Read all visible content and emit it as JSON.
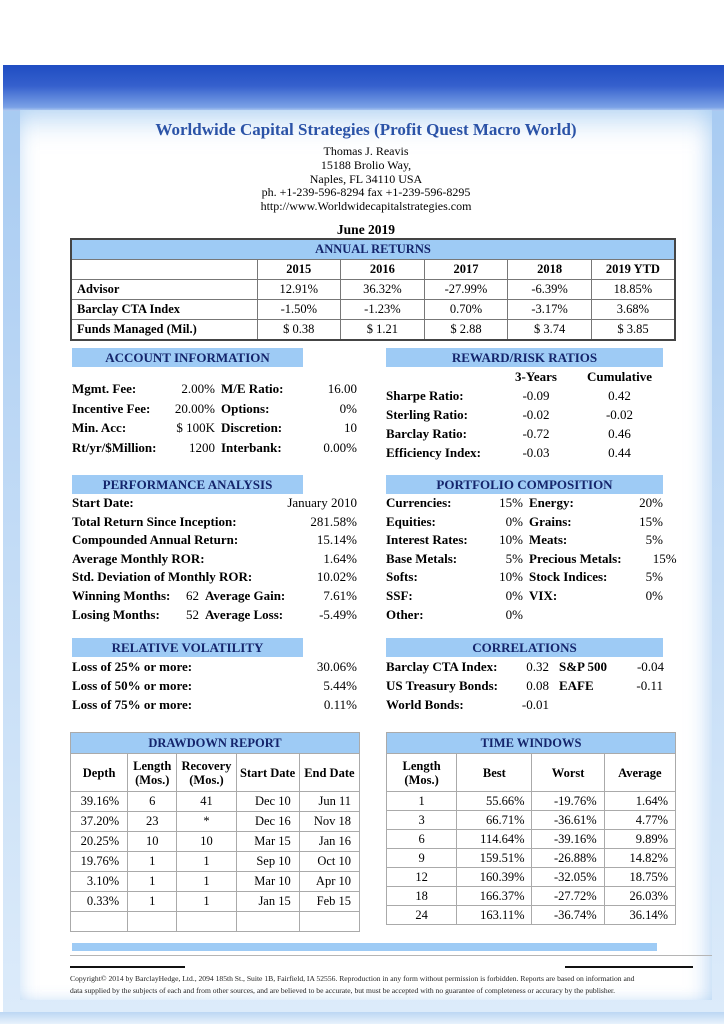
{
  "header": {
    "title": "Worldwide Capital Strategies (Profit Quest Macro World)",
    "contact": [
      "Thomas J. Reavis",
      "15188 Brolio Way,",
      "Naples, FL 34110 USA",
      "ph. +1-239-596-8294  fax +1-239-596-8295",
      "http://www.Worldwidecapitalstrategies.com"
    ],
    "report_date": "June 2019"
  },
  "annual_returns": {
    "title": "ANNUAL RETURNS",
    "columns": [
      "",
      "2015",
      "2016",
      "2017",
      "2018",
      "2019 YTD"
    ],
    "rows": [
      [
        "Advisor",
        "12.91%",
        "36.32%",
        "-27.99%",
        "-6.39%",
        "18.85%"
      ],
      [
        "Barclay CTA Index",
        "-1.50%",
        "-1.23%",
        "0.70%",
        "-3.17%",
        "3.68%"
      ],
      [
        "Funds Managed (Mil.)",
        "$ 0.38",
        "$ 1.21",
        "$ 2.88",
        "$ 3.74",
        "$ 3.85"
      ]
    ]
  },
  "account_information": {
    "title": "ACCOUNT INFORMATION",
    "rows": [
      {
        "l1": "Mgmt. Fee:",
        "v1": "2.00%",
        "l2": "M/E Ratio:",
        "v2": "16.00"
      },
      {
        "l1": "Incentive Fee:",
        "v1": "20.00%",
        "l2": "Options:",
        "v2": "0%"
      },
      {
        "l1": "Min. Acc:",
        "v1": "$ 100K",
        "l2": "Discretion:",
        "v2": "10"
      },
      {
        "l1": "Rt/yr/$Million:",
        "v1": "1200",
        "l2": "Interbank:",
        "v2": "0.00%"
      }
    ]
  },
  "reward_risk": {
    "title": "REWARD/RISK RATIOS",
    "col_headers": [
      "3-Years",
      "Cumulative"
    ],
    "rows": [
      {
        "label": "Sharpe Ratio:",
        "v1": "-0.09",
        "v2": "0.42"
      },
      {
        "label": "Sterling Ratio:",
        "v1": "-0.02",
        "v2": "-0.02"
      },
      {
        "label": "Barclay Ratio:",
        "v1": "-0.72",
        "v2": "0.46"
      },
      {
        "label": "Efficiency Index:",
        "v1": "-0.03",
        "v2": "0.44"
      }
    ]
  },
  "performance": {
    "title": "PERFORMANCE ANALYSIS",
    "rows": [
      {
        "label": "Start Date:",
        "value": "January 2010"
      },
      {
        "label": "Total Return Since Inception:",
        "value": "281.58%"
      },
      {
        "label": "Compounded Annual Return:",
        "value": "15.14%"
      },
      {
        "label": "Average Monthly ROR:",
        "value": "1.64%"
      },
      {
        "label": "Std. Deviation of Monthly ROR:",
        "value": "10.02%"
      }
    ],
    "split_rows": [
      {
        "l1": "Winning Months:",
        "v1": "62",
        "l2": "Average Gain:",
        "v2": "7.61%"
      },
      {
        "l1": "Losing Months:",
        "v1": "52",
        "l2": "Average Loss:",
        "v2": "-5.49%"
      }
    ]
  },
  "portfolio": {
    "title": "PORTFOLIO COMPOSITION",
    "rows": [
      {
        "l1": "Currencies:",
        "v1": "15%",
        "l2": "Energy:",
        "v2": "20%"
      },
      {
        "l1": "Equities:",
        "v1": "0%",
        "l2": "Grains:",
        "v2": "15%"
      },
      {
        "l1": "Interest Rates:",
        "v1": "10%",
        "l2": "Meats:",
        "v2": "5%"
      },
      {
        "l1": "Base Metals:",
        "v1": "5%",
        "l2": "Precious Metals:",
        "v2": "15%"
      },
      {
        "l1": "Softs:",
        "v1": "10%",
        "l2": "Stock Indices:",
        "v2": "5%"
      },
      {
        "l1": "SSF:",
        "v1": "0%",
        "l2": "VIX:",
        "v2": "0%"
      },
      {
        "l1": "Other:",
        "v1": "0%",
        "l2": "",
        "v2": ""
      }
    ]
  },
  "volatility": {
    "title": "RELATIVE VOLATILITY",
    "rows": [
      {
        "label": "Loss of 25% or more:",
        "value": "30.06%"
      },
      {
        "label": "Loss of 50% or more:",
        "value": "5.44%"
      },
      {
        "label": "Loss of 75% or more:",
        "value": "0.11%"
      }
    ]
  },
  "correlations": {
    "title": "CORRELATIONS",
    "rows": [
      {
        "l1": "Barclay CTA Index:",
        "v1": "0.32",
        "l2": "S&P 500",
        "v2": "-0.04"
      },
      {
        "l1": "US Treasury Bonds:",
        "v1": "0.08",
        "l2": "EAFE",
        "v2": "-0.11"
      },
      {
        "l1": "World Bonds:",
        "v1": "-0.01",
        "l2": "",
        "v2": ""
      }
    ]
  },
  "drawdown": {
    "title": "DRAWDOWN REPORT",
    "columns": [
      "Depth",
      "Length (Mos.)",
      "Recovery (Mos.)",
      "Start Date",
      "End Date"
    ],
    "rows": [
      [
        "39.16%",
        "6",
        "41",
        "Dec 10",
        "Jun 11"
      ],
      [
        "37.20%",
        "23",
        "*",
        "Dec 16",
        "Nov 18"
      ],
      [
        "20.25%",
        "10",
        "10",
        "Mar 15",
        "Jan 16"
      ],
      [
        "19.76%",
        "1",
        "1",
        "Sep 10",
        "Oct 10"
      ],
      [
        "3.10%",
        "1",
        "1",
        "Mar 10",
        "Apr 10"
      ],
      [
        "0.33%",
        "1",
        "1",
        "Jan 15",
        "Feb 15"
      ],
      [
        "",
        "",
        "",
        "",
        ""
      ]
    ]
  },
  "time_windows": {
    "title": "TIME WINDOWS",
    "columns": [
      "Length (Mos.)",
      "Best",
      "Worst",
      "Average"
    ],
    "rows": [
      [
        "1",
        "55.66%",
        "-19.76%",
        "1.64%"
      ],
      [
        "3",
        "66.71%",
        "-36.61%",
        "4.77%"
      ],
      [
        "6",
        "114.64%",
        "-39.16%",
        "9.89%"
      ],
      [
        "9",
        "159.51%",
        "-26.88%",
        "14.82%"
      ],
      [
        "12",
        "160.39%",
        "-32.05%",
        "18.75%"
      ],
      [
        "18",
        "166.37%",
        "-27.72%",
        "26.03%"
      ],
      [
        "24",
        "163.11%",
        "-36.74%",
        "36.14%"
      ]
    ]
  },
  "footer": {
    "line1": "Copyright© 2014 by BarclayHedge, Ltd., 2094 185th St., Suite 1B, Fairfield, IA 52556. Reproduction in any form without permission is forbidden. Reports are based on information and",
    "line2": "data supplied by the subjects of each and from other sources, and are believed to be accurate, but must be accepted with no guarantee of completeness or accuracy by the publisher."
  },
  "colors": {
    "section_bar": "#9ECBF5",
    "title_blue": "#2B53A7",
    "header_navy": "#14246B",
    "frame_blue": "#2451C7"
  }
}
